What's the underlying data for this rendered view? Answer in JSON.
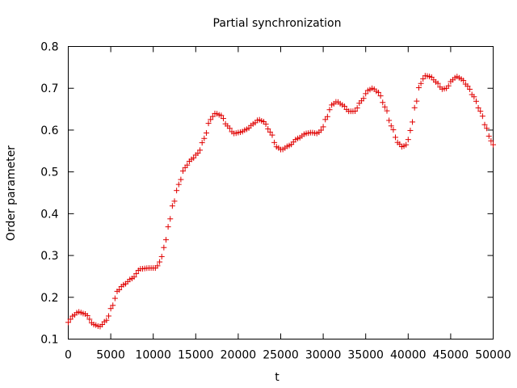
{
  "chart_data": {
    "type": "scatter",
    "title": "Partial synchronization",
    "xlabel": "t",
    "ylabel": "Order parameter",
    "xlim": [
      0,
      50000
    ],
    "ylim": [
      0.1,
      0.8
    ],
    "x_ticks": [
      0,
      5000,
      10000,
      15000,
      20000,
      25000,
      30000,
      35000,
      40000,
      45000,
      50000
    ],
    "y_ticks": [
      0.1,
      0.2,
      0.3,
      0.4,
      0.5,
      0.6,
      0.7,
      0.8
    ],
    "marker": "+",
    "color": "#e00000",
    "grid": false,
    "legend": "none",
    "series": [
      {
        "x_start": 0,
        "x_step": 250,
        "anchors": [
          [
            0,
            0.14
          ],
          [
            500,
            0.155
          ],
          [
            1200,
            0.165
          ],
          [
            2000,
            0.16
          ],
          [
            3000,
            0.135
          ],
          [
            3700,
            0.13
          ],
          [
            4500,
            0.145
          ],
          [
            5200,
            0.18
          ],
          [
            5800,
            0.215
          ],
          [
            6500,
            0.23
          ],
          [
            7500,
            0.245
          ],
          [
            8500,
            0.268
          ],
          [
            9500,
            0.27
          ],
          [
            10300,
            0.27
          ],
          [
            10800,
            0.285
          ],
          [
            11300,
            0.32
          ],
          [
            11800,
            0.37
          ],
          [
            12300,
            0.42
          ],
          [
            13000,
            0.47
          ],
          [
            13700,
            0.51
          ],
          [
            14500,
            0.53
          ],
          [
            15300,
            0.545
          ],
          [
            16000,
            0.58
          ],
          [
            16700,
            0.625
          ],
          [
            17300,
            0.64
          ],
          [
            18000,
            0.635
          ],
          [
            18700,
            0.61
          ],
          [
            19500,
            0.592
          ],
          [
            20300,
            0.595
          ],
          [
            21000,
            0.602
          ],
          [
            21800,
            0.615
          ],
          [
            22400,
            0.625
          ],
          [
            23000,
            0.62
          ],
          [
            23800,
            0.595
          ],
          [
            24500,
            0.56
          ],
          [
            25100,
            0.553
          ],
          [
            26000,
            0.563
          ],
          [
            27000,
            0.58
          ],
          [
            28000,
            0.592
          ],
          [
            28600,
            0.594
          ],
          [
            29300,
            0.592
          ],
          [
            29800,
            0.6
          ],
          [
            30400,
            0.63
          ],
          [
            31000,
            0.66
          ],
          [
            31600,
            0.668
          ],
          [
            32300,
            0.66
          ],
          [
            33000,
            0.645
          ],
          [
            33700,
            0.645
          ],
          [
            34500,
            0.67
          ],
          [
            35300,
            0.695
          ],
          [
            35800,
            0.7
          ],
          [
            36500,
            0.69
          ],
          [
            37300,
            0.655
          ],
          [
            38000,
            0.61
          ],
          [
            38800,
            0.57
          ],
          [
            39300,
            0.56
          ],
          [
            39800,
            0.565
          ],
          [
            40300,
            0.6
          ],
          [
            40800,
            0.655
          ],
          [
            41400,
            0.71
          ],
          [
            42000,
            0.73
          ],
          [
            42600,
            0.728
          ],
          [
            43300,
            0.715
          ],
          [
            44000,
            0.698
          ],
          [
            44500,
            0.7
          ],
          [
            45200,
            0.72
          ],
          [
            45700,
            0.728
          ],
          [
            46300,
            0.722
          ],
          [
            47000,
            0.705
          ],
          [
            47700,
            0.68
          ],
          [
            48500,
            0.645
          ],
          [
            49200,
            0.605
          ],
          [
            49700,
            0.575
          ],
          [
            50000,
            0.565
          ]
        ]
      }
    ]
  }
}
